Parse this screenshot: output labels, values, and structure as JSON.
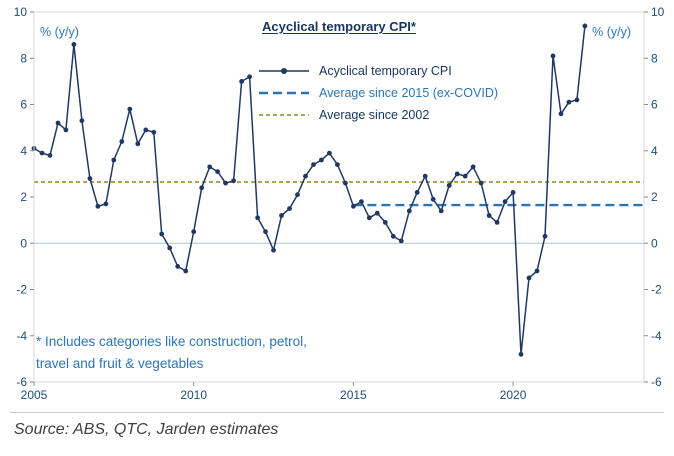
{
  "page": {
    "title": "Acyclical temporary CPI*",
    "axis_unit_left": "% (y/y)",
    "axis_unit_right": "% (y/y)",
    "footnote_line1": "* Includes categories like construction, petrol,",
    "footnote_line2": "travel and fruit & vegetables",
    "source": "Source: ABS, QTC, Jarden estimates"
  },
  "chart_data": {
    "type": "line",
    "title": "Acyclical temporary CPI*",
    "frequency": "quarterly",
    "x_start": 2005.0,
    "x_step": 0.25,
    "xlim": [
      2005,
      2024.1
    ],
    "ylim": [
      -6,
      10
    ],
    "yticks": [
      -6,
      -4,
      -2,
      0,
      2,
      4,
      6,
      8,
      10
    ],
    "xticks": [
      2005,
      2010,
      2015,
      2020
    ],
    "grid": false,
    "legend_position": "upper-center-inside",
    "colors": {
      "axis_text": "#1f4e79",
      "zero_line": "#a6c3e3",
      "plot_border": "#d9d9d9",
      "accent_blue": "#2e74b5"
    },
    "series": [
      {
        "name": "Acyclical temporary CPI",
        "color": "#203864",
        "style": "solid-with-markers",
        "values": [
          4.1,
          3.9,
          3.8,
          5.2,
          4.9,
          8.6,
          5.3,
          2.8,
          1.6,
          1.7,
          3.6,
          4.4,
          5.8,
          4.3,
          4.9,
          4.8,
          0.4,
          -0.2,
          -1.0,
          -1.2,
          0.5,
          2.4,
          3.3,
          3.1,
          2.6,
          2.7,
          7.0,
          7.2,
          1.1,
          0.5,
          -0.3,
          1.2,
          1.5,
          2.1,
          2.9,
          3.4,
          3.6,
          3.9,
          3.4,
          2.6,
          1.6,
          1.8,
          1.1,
          1.3,
          0.9,
          0.3,
          0.1,
          1.4,
          2.2,
          2.9,
          1.9,
          1.4,
          2.5,
          3.0,
          2.9,
          3.3,
          2.6,
          1.2,
          0.9,
          1.8,
          2.2,
          -4.8,
          -1.5,
          -1.2,
          0.3,
          8.1,
          5.6,
          6.1,
          6.2,
          9.4
        ]
      },
      {
        "name": "Average since 2015 (ex-COVID)",
        "color": "#2e74b5",
        "style": "dashed",
        "value": 1.65,
        "x_from": 2015,
        "x_to": 2024.1
      },
      {
        "name": "Average since 2002",
        "color": "#b7a05a",
        "style": "dashed",
        "value": 2.65,
        "x_from": 2005,
        "x_to": 2024.1
      }
    ]
  }
}
